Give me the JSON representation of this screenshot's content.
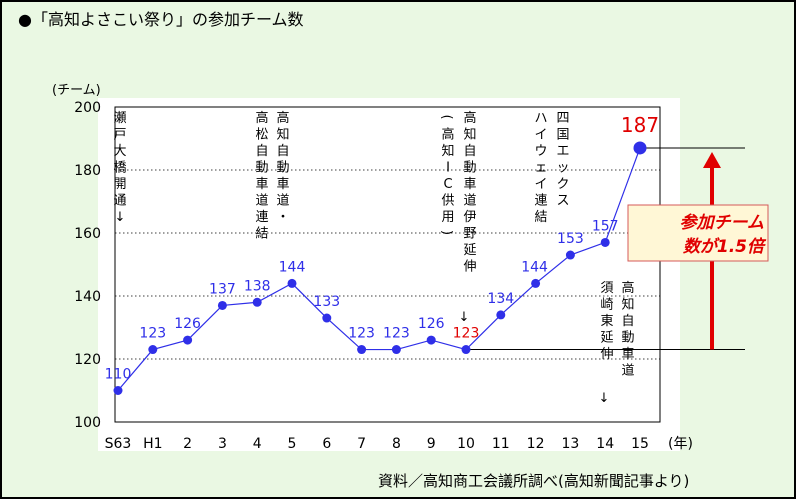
{
  "title": "●「高知よさこい祭り」の参加チーム数",
  "source": "資料／高知商工会議所調べ(高知新聞記事より)",
  "chart_data": {
    "type": "line",
    "ylabel": "(チーム)",
    "xlabel": "(年)",
    "categories": [
      "S63",
      "H1",
      "2",
      "3",
      "4",
      "5",
      "6",
      "7",
      "8",
      "9",
      "10",
      "11",
      "12",
      "13",
      "14",
      "15"
    ],
    "values": [
      110,
      123,
      126,
      137,
      138,
      144,
      133,
      123,
      123,
      126,
      123,
      134,
      144,
      153,
      157,
      187
    ],
    "ylim": [
      100,
      200
    ],
    "yticks": [
      100,
      120,
      140,
      160,
      180,
      200
    ],
    "grid": "horizontal-dotted",
    "colors": {
      "line": "#2f2fe8",
      "label": "#2f2fe8",
      "highlight": "#e00000",
      "arrow": "#e00000"
    },
    "annotations": [
      {
        "cat_index": 0,
        "lines": [
          "瀬戸大橋開通",
          "↓"
        ]
      },
      {
        "cat_index": 5,
        "lines": [
          "高知自動車道・",
          "高松自動車道連結"
        ]
      },
      {
        "cat_index": 10,
        "lines": [
          "高知自動車道伊野延伸",
          "↓",
          "(高知IC供用)"
        ]
      },
      {
        "cat_index": 12,
        "lines": [
          "四国エックスハイウェイ連結"
        ]
      },
      {
        "cat_index": 14,
        "lines": [
          "高知自動車道",
          "須崎東延伸",
          "↓"
        ]
      }
    ],
    "callout": {
      "line1": "参加チーム",
      "line2": "数が1.5倍"
    }
  }
}
